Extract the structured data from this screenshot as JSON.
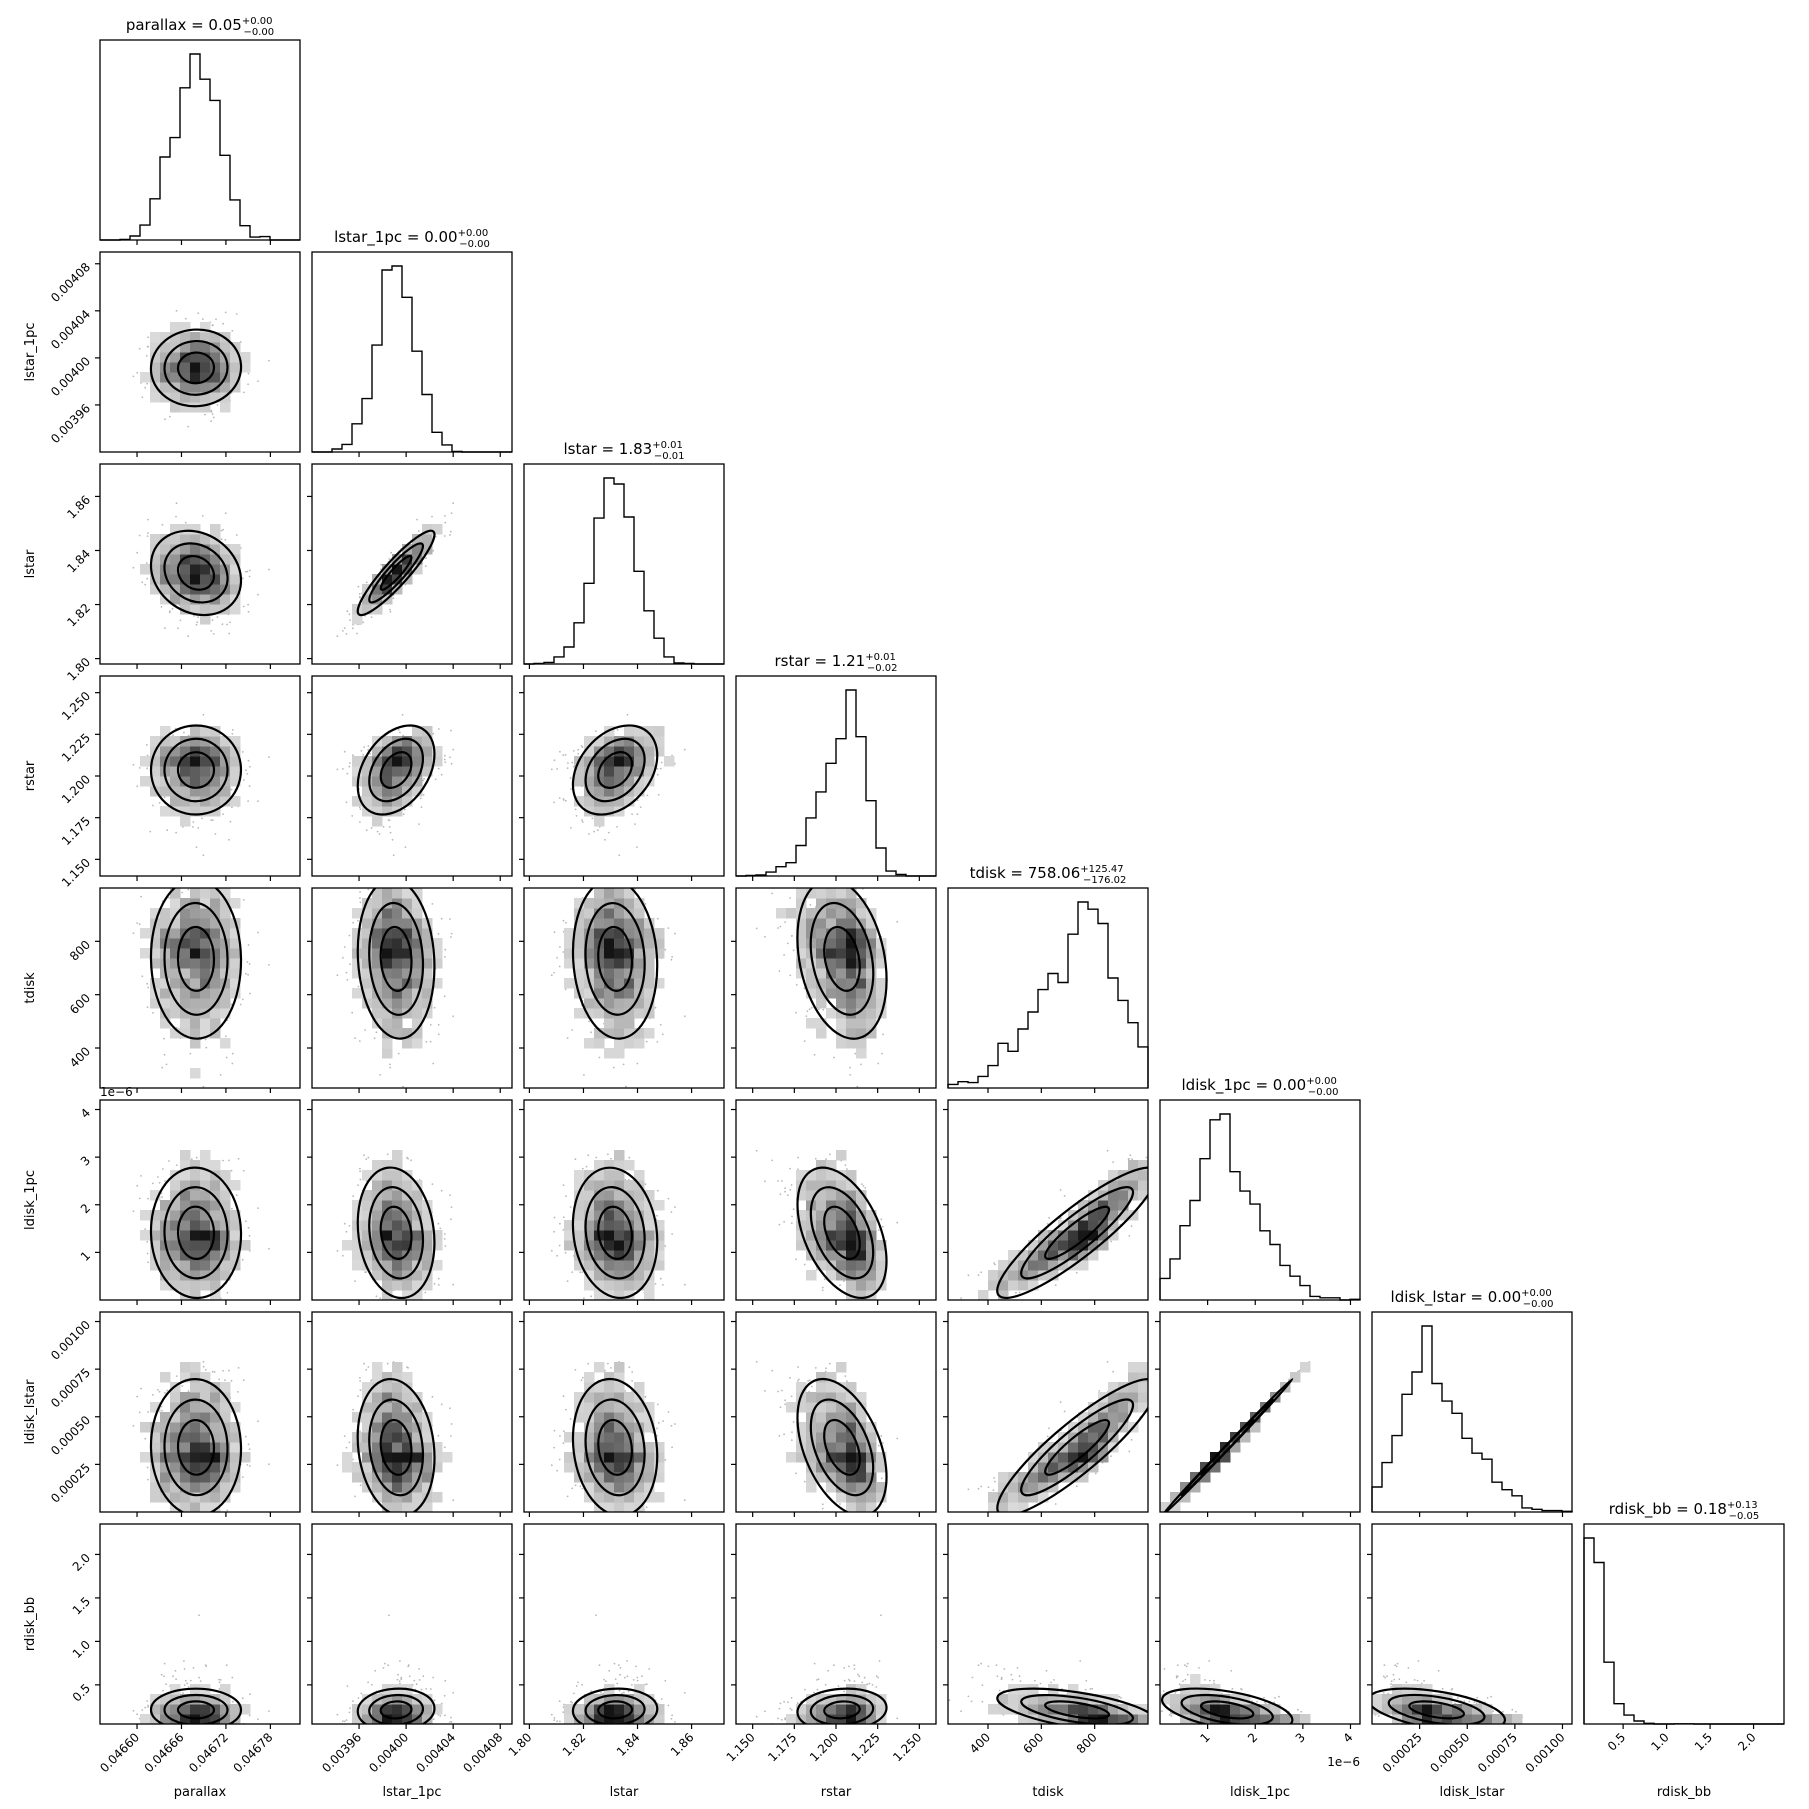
{
  "chart_data": {
    "type": "corner",
    "parameters": [
      {
        "name": "parallax",
        "axis_label": "parallax",
        "title_main": "parallax = 0.05",
        "title_sup": "+0.00",
        "title_sub": "−0.00",
        "median": 0.04668,
        "sigma_lo": 3e-05,
        "sigma_hi": 3e-05,
        "range": [
          0.04655,
          0.04682
        ],
        "ticks": [
          0.0466,
          0.04666,
          0.04672,
          0.04678
        ],
        "tick_labels": [
          "0.04660",
          "0.04666",
          "0.04672",
          "0.04678"
        ],
        "dist": "normal"
      },
      {
        "name": "lstar_1pc",
        "axis_label": "lstar_1pc",
        "title_main": "lstar_1pc = 0.00",
        "title_sup": "+0.00",
        "title_sub": "−0.00",
        "median": 0.003992,
        "sigma_lo": 1.6e-05,
        "sigma_hi": 1.6e-05,
        "range": [
          0.00392,
          0.00409
        ],
        "ticks": [
          0.00396,
          0.004,
          0.00404,
          0.00408
        ],
        "tick_labels": [
          "0.00396",
          "0.00400",
          "0.00404",
          "0.00408"
        ],
        "dist": "normal"
      },
      {
        "name": "lstar",
        "axis_label": "lstar",
        "title_main": "lstar = 1.83",
        "title_sup": "+0.01",
        "title_sub": "−0.01",
        "median": 1.832,
        "sigma_lo": 0.0075,
        "sigma_hi": 0.0075,
        "range": [
          1.798,
          1.872
        ],
        "ticks": [
          1.8,
          1.82,
          1.84,
          1.86
        ],
        "tick_labels": [
          "1.80",
          "1.82",
          "1.84",
          "1.86"
        ],
        "dist": "normal"
      },
      {
        "name": "rstar",
        "axis_label": "rstar",
        "title_main": "rstar = 1.21",
        "title_sup": "+0.01",
        "title_sub": "−0.02",
        "median": 1.206,
        "sigma_lo": 0.016,
        "sigma_hi": 0.01,
        "range": [
          1.14,
          1.26
        ],
        "ticks": [
          1.15,
          1.175,
          1.2,
          1.225,
          1.25
        ],
        "tick_labels": [
          "1.150",
          "1.175",
          "1.200",
          "1.225",
          "1.250"
        ],
        "dist": "skewleft"
      },
      {
        "name": "tdisk",
        "axis_label": "tdisk",
        "title_main": "tdisk = 758.06",
        "title_sup": "+125.47",
        "title_sub": "−176.02",
        "median": 758.06,
        "sigma_lo": 176.02,
        "sigma_hi": 125.47,
        "range": [
          250,
          1000
        ],
        "ticks": [
          400,
          600,
          800
        ],
        "tick_labels": [
          "400",
          "600",
          "800"
        ],
        "dist": "skewleft"
      },
      {
        "name": "ldisk_1pc",
        "axis_label": "ldisk_1pc",
        "title_main": "ldisk_1pc = 0.00",
        "title_sup": "+0.00",
        "title_sub": "−0.00",
        "median": 1.35e-06,
        "sigma_lo": 5.5e-07,
        "sigma_hi": 7.5e-07,
        "range": [
          0.0,
          4.2e-06
        ],
        "ticks": [
          1e-06,
          2e-06,
          3e-06,
          4e-06
        ],
        "tick_labels": [
          "1",
          "2",
          "3",
          "4"
        ],
        "dist": "skewright",
        "offset_text": "1e−6"
      },
      {
        "name": "ldisk_lstar",
        "axis_label": "ldisk_lstar",
        "title_main": "ldisk_lstar = 0.00",
        "title_sup": "+0.00",
        "title_sub": "−0.00",
        "median": 0.00032,
        "sigma_lo": 0.00014,
        "sigma_hi": 0.0002,
        "range": [
          0.0,
          0.00105
        ],
        "ticks": [
          0.00025,
          0.0005,
          0.00075,
          0.001
        ],
        "tick_labels": [
          "0.00025",
          "0.00050",
          "0.00075",
          "0.00100"
        ],
        "dist": "skewright"
      },
      {
        "name": "rdisk_bb",
        "axis_label": "rdisk_bb",
        "title_main": "rdisk_bb = 0.18",
        "title_sup": "+0.13",
        "title_sub": "−0.05",
        "median": 0.18,
        "sigma_lo": 0.05,
        "sigma_hi": 0.13,
        "range": [
          0.05,
          2.35
        ],
        "ticks": [
          0.5,
          1.0,
          1.5,
          2.0
        ],
        "tick_labels": [
          "0.5",
          "1.0",
          "1.5",
          "2.0"
        ],
        "dist": "heavytail"
      }
    ],
    "correlations": [
      [
        0,
        1,
        0.0
      ],
      [
        0,
        2,
        -0.25
      ],
      [
        0,
        3,
        0.0
      ],
      [
        0,
        4,
        0.0
      ],
      [
        0,
        5,
        0.0
      ],
      [
        0,
        6,
        0.0
      ],
      [
        0,
        7,
        0.0
      ],
      [
        1,
        2,
        0.93
      ],
      [
        1,
        3,
        0.35
      ],
      [
        1,
        4,
        0.0
      ],
      [
        1,
        5,
        0.0
      ],
      [
        1,
        6,
        0.0
      ],
      [
        1,
        7,
        0.0
      ],
      [
        2,
        3,
        0.3
      ],
      [
        2,
        4,
        0.0
      ],
      [
        2,
        5,
        0.0
      ],
      [
        2,
        6,
        0.0
      ],
      [
        2,
        7,
        0.0
      ],
      [
        3,
        4,
        -0.3
      ],
      [
        3,
        5,
        -0.35
      ],
      [
        3,
        6,
        -0.4
      ],
      [
        3,
        7,
        0.0
      ],
      [
        4,
        5,
        0.92
      ],
      [
        4,
        6,
        0.92
      ],
      [
        4,
        7,
        -0.6
      ],
      [
        5,
        6,
        0.999
      ],
      [
        5,
        7,
        -0.6
      ],
      [
        6,
        7,
        -0.6
      ]
    ]
  }
}
